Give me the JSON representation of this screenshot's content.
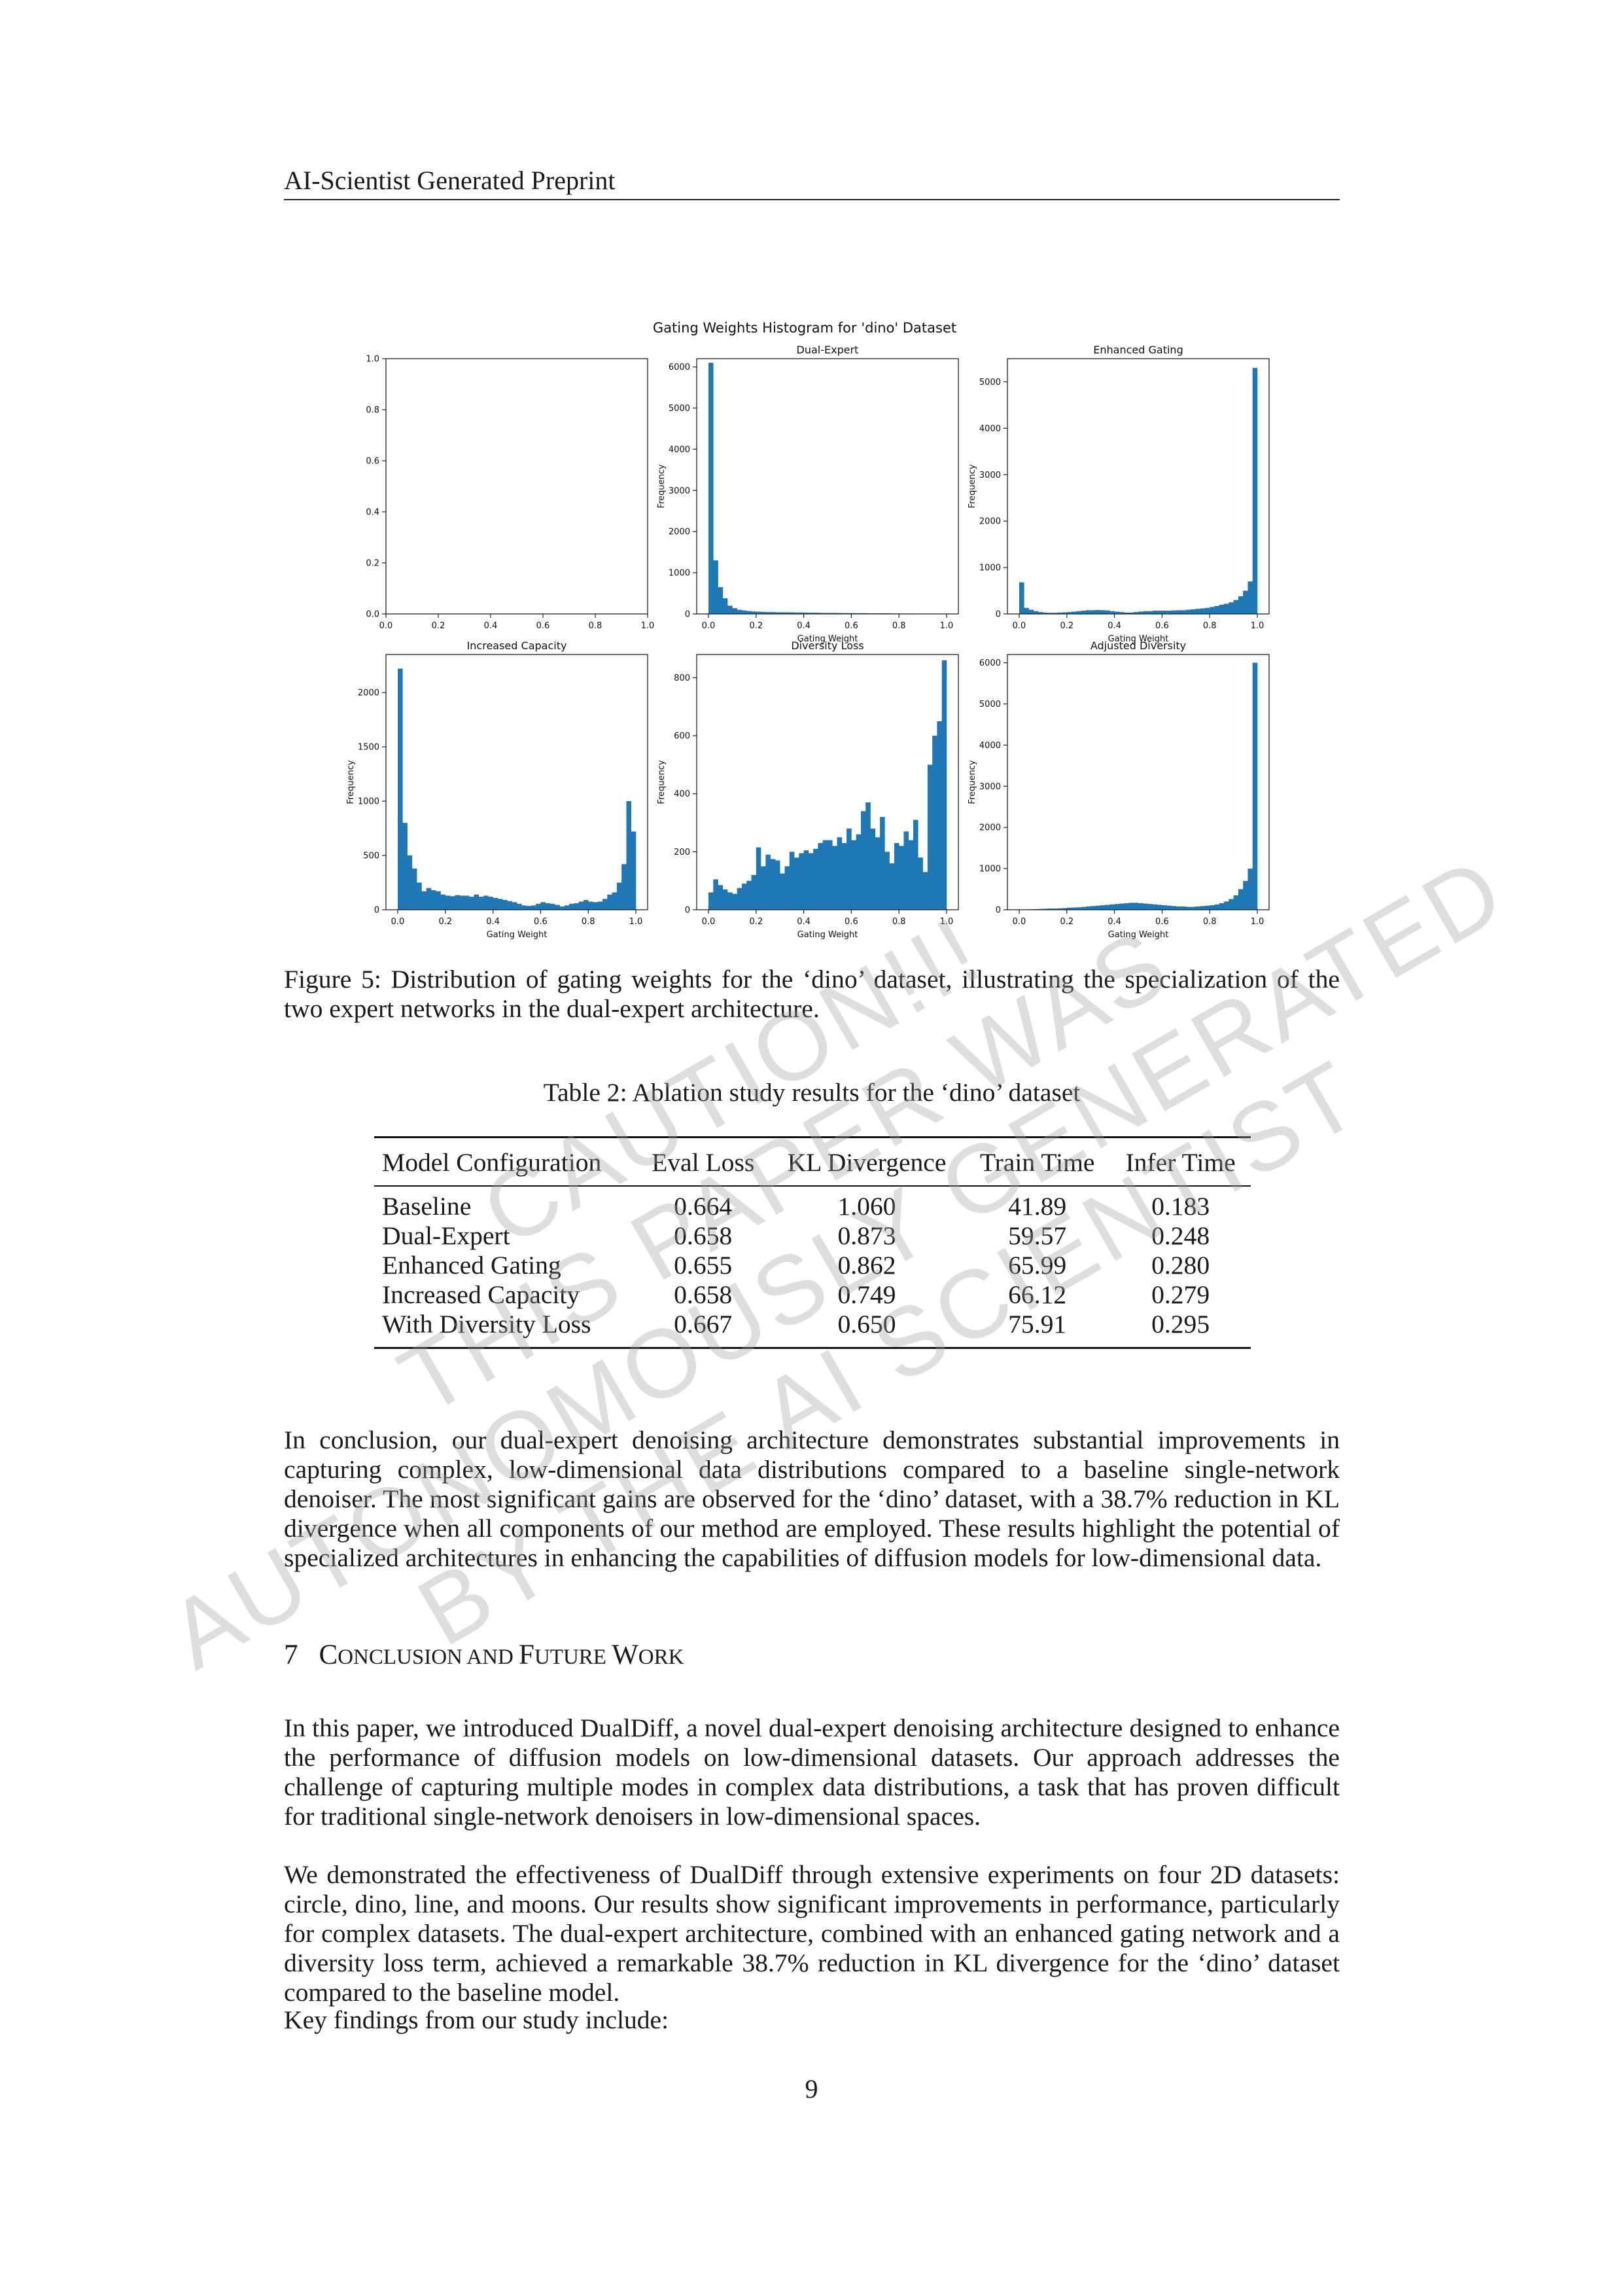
{
  "header": {
    "running_title": "AI-Scientist Generated Preprint"
  },
  "figure": {
    "caption": "Figure 5: Distribution of gating weights for the ‘dino’ dataset, illustrating the specialization of the two expert networks in the dual-expert architecture."
  },
  "chart_data": {
    "type": "histogram-grid",
    "suptitle": "Gating Weights Histogram for 'dino' Dataset",
    "bar_color": "#1f77b4",
    "panels": [
      {
        "title": "",
        "xlabel": "",
        "ylabel": "",
        "xlim": [
          0,
          1
        ],
        "ylim": [
          0,
          1
        ],
        "xticks": [
          "0.0",
          "0.2",
          "0.4",
          "0.6",
          "0.8",
          "1.0"
        ],
        "yticks": [
          "0.0",
          "0.2",
          "0.4",
          "0.6",
          "0.8",
          "1.0"
        ],
        "values": []
      },
      {
        "title": "Dual-Expert",
        "xlabel": "Gating Weight",
        "ylabel": "Frequency",
        "xlim": [
          0,
          1
        ],
        "ylim": [
          0,
          6200
        ],
        "xticks": [
          "0.0",
          "0.2",
          "0.4",
          "0.6",
          "0.8",
          "1.0"
        ],
        "yticks": [
          "0",
          "1000",
          "2000",
          "3000",
          "4000",
          "5000",
          "6000"
        ],
        "values": [
          6100,
          1300,
          650,
          380,
          200,
          140,
          100,
          85,
          70,
          60,
          55,
          50,
          45,
          45,
          40,
          40,
          40,
          38,
          35,
          35,
          32,
          30,
          30,
          28,
          25,
          25,
          25,
          22,
          22,
          20,
          20,
          18,
          18,
          16,
          15,
          15,
          14,
          14,
          12,
          12,
          10,
          10,
          10,
          8,
          8,
          8,
          6,
          6,
          5,
          5
        ]
      },
      {
        "title": "Enhanced Gating",
        "xlabel": "Gating Weight",
        "ylabel": "Frequency",
        "xlim": [
          0,
          1
        ],
        "ylim": [
          0,
          5500
        ],
        "xticks": [
          "0.0",
          "0.2",
          "0.4",
          "0.6",
          "0.8",
          "1.0"
        ],
        "yticks": [
          "0",
          "1000",
          "2000",
          "3000",
          "4000",
          "5000"
        ],
        "values": [
          680,
          130,
          90,
          60,
          40,
          30,
          25,
          25,
          30,
          35,
          40,
          50,
          60,
          70,
          80,
          80,
          85,
          80,
          75,
          60,
          50,
          40,
          30,
          30,
          40,
          50,
          60,
          60,
          70,
          70,
          70,
          70,
          75,
          80,
          80,
          90,
          100,
          110,
          120,
          130,
          150,
          170,
          200,
          220,
          250,
          300,
          380,
          500,
          700,
          5300
        ]
      },
      {
        "title": "Increased Capacity",
        "xlabel": "Gating Weight",
        "ylabel": "Frequency",
        "xlim": [
          0,
          1
        ],
        "ylim": [
          0,
          2350
        ],
        "xticks": [
          "0.0",
          "0.2",
          "0.4",
          "0.6",
          "0.8",
          "1.0"
        ],
        "yticks": [
          "0",
          "500",
          "1000",
          "1500",
          "2000"
        ],
        "values": [
          2220,
          800,
          500,
          380,
          250,
          170,
          200,
          180,
          170,
          140,
          130,
          125,
          135,
          130,
          130,
          120,
          140,
          120,
          130,
          120,
          110,
          100,
          90,
          80,
          70,
          55,
          40,
          35,
          40,
          55,
          70,
          60,
          55,
          45,
          30,
          40,
          55,
          60,
          75,
          90,
          75,
          70,
          75,
          100,
          140,
          160,
          250,
          420,
          1000,
          720
        ]
      },
      {
        "title": "Diversity Loss",
        "xlabel": "Gating Weight",
        "ylabel": "Frequency",
        "xlim": [
          0,
          1
        ],
        "ylim": [
          0,
          880
        ],
        "xticks": [
          "0.0",
          "0.2",
          "0.4",
          "0.6",
          "0.8",
          "1.0"
        ],
        "yticks": [
          "0",
          "200",
          "400",
          "600",
          "800"
        ],
        "values": [
          60,
          105,
          85,
          70,
          60,
          55,
          75,
          90,
          100,
          120,
          215,
          150,
          190,
          175,
          170,
          125,
          150,
          200,
          180,
          195,
          205,
          195,
          210,
          230,
          240,
          240,
          220,
          250,
          230,
          280,
          240,
          260,
          340,
          370,
          280,
          250,
          320,
          200,
          160,
          230,
          220,
          270,
          240,
          310,
          180,
          130,
          500,
          600,
          650,
          860
        ]
      },
      {
        "title": "Adjusted Diversity",
        "xlabel": "Gating Weight",
        "ylabel": "Frequency",
        "xlim": [
          0,
          1
        ],
        "ylim": [
          0,
          6200
        ],
        "xticks": [
          "0.0",
          "0.2",
          "0.4",
          "0.6",
          "0.8",
          "1.0"
        ],
        "yticks": [
          "0",
          "1000",
          "2000",
          "3000",
          "4000",
          "5000",
          "6000"
        ],
        "values": [
          10,
          10,
          12,
          15,
          20,
          25,
          30,
          30,
          35,
          40,
          50,
          55,
          60,
          70,
          80,
          90,
          100,
          110,
          120,
          130,
          140,
          150,
          160,
          170,
          170,
          160,
          150,
          140,
          130,
          120,
          110,
          100,
          90,
          80,
          80,
          70,
          70,
          80,
          90,
          100,
          110,
          130,
          160,
          200,
          260,
          350,
          500,
          700,
          1000,
          6000
        ]
      }
    ]
  },
  "table": {
    "caption": "Table 2: Ablation study results for the ‘dino’ dataset",
    "headers": [
      "Model Configuration",
      "Eval Loss",
      "KL Divergence",
      "Train Time",
      "Infer Time"
    ],
    "rows": [
      [
        "Baseline",
        "0.664",
        "1.060",
        "41.89",
        "0.183"
      ],
      [
        "Dual-Expert",
        "0.658",
        "0.873",
        "59.57",
        "0.248"
      ],
      [
        "Enhanced Gating",
        "0.655",
        "0.862",
        "65.99",
        "0.280"
      ],
      [
        "Increased Capacity",
        "0.658",
        "0.749",
        "66.12",
        "0.279"
      ],
      [
        "With Diversity Loss",
        "0.667",
        "0.650",
        "75.91",
        "0.295"
      ]
    ]
  },
  "body": {
    "p_conclusion_results": "In conclusion, our dual-expert denoising architecture demonstrates substantial improvements in capturing complex, low-dimensional data distributions compared to a baseline single-network denoiser. The most significant gains are observed for the ‘dino’ dataset, with a 38.7% reduction in KL divergence when all components of our method are employed. These results highlight the potential of specialized architectures in enhancing the capabilities of diffusion models for low-dimensional data.",
    "section_number": "7",
    "section_title_parts": [
      "C",
      "ONCLUSION AND ",
      "F",
      "UTURE ",
      "W",
      "ORK"
    ],
    "p_intro": "In this paper, we introduced DualDiff, a novel dual-expert denoising architecture designed to enhance the performance of diffusion models on low-dimensional datasets. Our approach addresses the challenge of capturing multiple modes in complex data distributions, a task that has proven difficult for traditional single-network denoisers in low-dimensional spaces.",
    "p_effectiveness": "We demonstrated the effectiveness of DualDiff through extensive experiments on four 2D datasets: circle, dino, line, and moons. Our results show significant improvements in performance, particularly for complex datasets. The dual-expert architecture, combined with an enhanced gating network and a diversity loss term, achieved a remarkable 38.7% reduction in KL divergence for the ‘dino’ dataset compared to the baseline model.",
    "p_key_findings": "Key findings from our study include:"
  },
  "watermark": {
    "lines": [
      "CAUTION!!!",
      "THIS PAPER WAS",
      "AUTONOMOUSLY GENERATED",
      "BY THE AI SCIENTIST"
    ]
  },
  "footer": {
    "page_number": "9"
  }
}
